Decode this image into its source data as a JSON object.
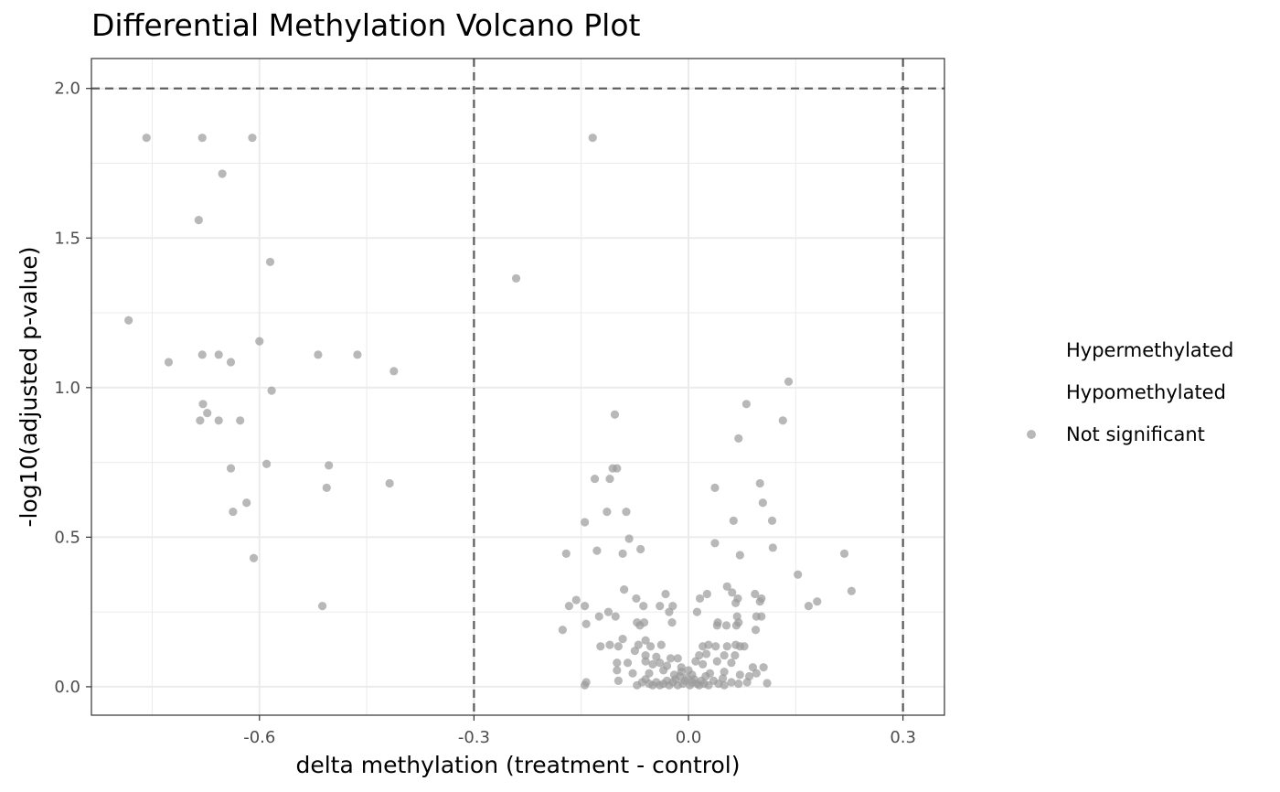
{
  "chart_data": {
    "type": "scatter",
    "title": "Differential Methylation Volcano Plot",
    "xlabel": "delta methylation (treatment - control)",
    "ylabel": "-log10(adjusted p-value)",
    "xlim": [
      -0.835,
      0.358
    ],
    "ylim": [
      -0.095,
      2.1
    ],
    "x_ticks": [
      -0.6,
      -0.3,
      0.0,
      0.3
    ],
    "x_tick_labels": [
      "-0.6",
      "-0.3",
      "0.0",
      "0.3"
    ],
    "y_ticks": [
      0.0,
      0.5,
      1.0,
      1.5,
      2.0
    ],
    "y_tick_labels": [
      "0.0",
      "0.5",
      "1.0",
      "1.5",
      "2.0"
    ],
    "x_minor_ticks": [
      -0.75,
      -0.45,
      -0.15,
      0.15
    ],
    "y_minor_ticks": [
      0.25,
      0.75,
      1.25,
      1.75
    ],
    "threshold_lines": {
      "vertical": [
        -0.3,
        0.3
      ],
      "horizontal": [
        2.0
      ]
    },
    "grid": true,
    "legend_position": "right",
    "legend": [
      {
        "label": "Hypermethylated",
        "shows_marker": false
      },
      {
        "label": "Hypomethylated",
        "shows_marker": false
      },
      {
        "label": "Not significant",
        "shows_marker": true
      }
    ],
    "colors": {
      "not_significant": "#9a9a9a",
      "threshold": "#5a5a5a",
      "grid": "#ebebeb",
      "panel_border": "#333333"
    },
    "series": [
      {
        "name": "Not significant",
        "points": [
          [
            -0.758,
            1.835
          ],
          [
            -0.68,
            1.835
          ],
          [
            -0.61,
            1.835
          ],
          [
            -0.652,
            1.715
          ],
          [
            -0.685,
            1.56
          ],
          [
            -0.585,
            1.42
          ],
          [
            -0.783,
            1.225
          ],
          [
            -0.6,
            1.155
          ],
          [
            -0.518,
            1.11
          ],
          [
            -0.463,
            1.11
          ],
          [
            -0.68,
            1.11
          ],
          [
            -0.657,
            1.11
          ],
          [
            -0.727,
            1.085
          ],
          [
            -0.64,
            1.085
          ],
          [
            -0.412,
            1.055
          ],
          [
            -0.583,
            0.99
          ],
          [
            -0.679,
            0.945
          ],
          [
            -0.673,
            0.915
          ],
          [
            -0.683,
            0.89
          ],
          [
            -0.657,
            0.89
          ],
          [
            -0.627,
            0.89
          ],
          [
            -0.59,
            0.745
          ],
          [
            -0.503,
            0.74
          ],
          [
            -0.64,
            0.73
          ],
          [
            -0.418,
            0.68
          ],
          [
            -0.506,
            0.665
          ],
          [
            -0.618,
            0.615
          ],
          [
            -0.637,
            0.585
          ],
          [
            -0.608,
            0.43
          ],
          [
            -0.512,
            0.27
          ],
          [
            -0.241,
            1.365
          ],
          [
            -0.134,
            1.835
          ],
          [
            0.14,
            1.02
          ],
          [
            0.081,
            0.945
          ],
          [
            -0.103,
            0.91
          ],
          [
            0.132,
            0.89
          ],
          [
            0.07,
            0.83
          ],
          [
            -0.1,
            0.73
          ],
          [
            -0.106,
            0.73
          ],
          [
            -0.131,
            0.695
          ],
          [
            -0.11,
            0.695
          ],
          [
            0.1,
            0.68
          ],
          [
            0.037,
            0.665
          ],
          [
            0.104,
            0.615
          ],
          [
            -0.114,
            0.585
          ],
          [
            -0.087,
            0.585
          ],
          [
            0.063,
            0.555
          ],
          [
            0.117,
            0.555
          ],
          [
            -0.145,
            0.55
          ],
          [
            -0.083,
            0.495
          ],
          [
            0.037,
            0.48
          ],
          [
            0.118,
            0.465
          ],
          [
            -0.067,
            0.46
          ],
          [
            -0.128,
            0.455
          ],
          [
            -0.171,
            0.445
          ],
          [
            -0.092,
            0.445
          ],
          [
            0.072,
            0.44
          ],
          [
            0.218,
            0.445
          ],
          [
            0.153,
            0.375
          ],
          [
            0.054,
            0.335
          ],
          [
            -0.09,
            0.325
          ],
          [
            0.061,
            0.315
          ],
          [
            0.228,
            0.32
          ],
          [
            -0.032,
            0.31
          ],
          [
            0.026,
            0.31
          ],
          [
            0.093,
            0.31
          ],
          [
            -0.157,
            0.29
          ],
          [
            -0.073,
            0.295
          ],
          [
            0.016,
            0.295
          ],
          [
            0.069,
            0.295
          ],
          [
            0.102,
            0.295
          ],
          [
            0.18,
            0.285
          ],
          [
            -0.167,
            0.27
          ],
          [
            -0.145,
            0.27
          ],
          [
            -0.063,
            0.27
          ],
          [
            -0.04,
            0.27
          ],
          [
            -0.022,
            0.27
          ],
          [
            0.1,
            0.285
          ],
          [
            0.168,
            0.27
          ],
          [
            0.066,
            0.28
          ],
          [
            -0.112,
            0.25
          ],
          [
            0.012,
            0.25
          ],
          [
            -0.027,
            0.25
          ],
          [
            -0.102,
            0.235
          ],
          [
            -0.125,
            0.235
          ],
          [
            0.068,
            0.235
          ],
          [
            0.095,
            0.235
          ],
          [
            0.102,
            0.235
          ],
          [
            -0.176,
            0.19
          ],
          [
            -0.143,
            0.21
          ],
          [
            -0.072,
            0.215
          ],
          [
            -0.068,
            0.205
          ],
          [
            -0.023,
            0.215
          ],
          [
            0.041,
            0.215
          ],
          [
            0.04,
            0.205
          ],
          [
            0.053,
            0.205
          ],
          [
            0.07,
            0.215
          ],
          [
            0.067,
            0.205
          ],
          [
            0.094,
            0.19
          ],
          [
            -0.062,
            0.215
          ],
          [
            -0.092,
            0.16
          ],
          [
            -0.123,
            0.135
          ],
          [
            -0.11,
            0.14
          ],
          [
            -0.098,
            0.135
          ],
          [
            -0.07,
            0.14
          ],
          [
            -0.06,
            0.155
          ],
          [
            -0.053,
            0.135
          ],
          [
            -0.038,
            0.14
          ],
          [
            0.02,
            0.135
          ],
          [
            0.028,
            0.14
          ],
          [
            0.038,
            0.135
          ],
          [
            0.054,
            0.135
          ],
          [
            0.066,
            0.14
          ],
          [
            0.072,
            0.135
          ],
          [
            0.078,
            0.135
          ],
          [
            -0.075,
            0.12
          ],
          [
            -0.06,
            0.105
          ],
          [
            -0.045,
            0.1
          ],
          [
            -0.025,
            0.095
          ],
          [
            -0.015,
            0.095
          ],
          [
            0.015,
            0.105
          ],
          [
            0.025,
            0.11
          ],
          [
            0.05,
            0.105
          ],
          [
            0.065,
            0.105
          ],
          [
            -0.1,
            0.08
          ],
          [
            -0.085,
            0.08
          ],
          [
            -0.06,
            0.085
          ],
          [
            -0.05,
            0.075
          ],
          [
            -0.04,
            0.08
          ],
          [
            -0.03,
            0.07
          ],
          [
            0.01,
            0.085
          ],
          [
            0.02,
            0.075
          ],
          [
            0.04,
            0.085
          ],
          [
            0.06,
            0.08
          ],
          [
            0.09,
            0.065
          ],
          [
            0.105,
            0.065
          ],
          [
            -0.1,
            0.055
          ],
          [
            -0.078,
            0.045
          ],
          [
            -0.055,
            0.045
          ],
          [
            -0.035,
            0.055
          ],
          [
            -0.02,
            0.04
          ],
          [
            -0.01,
            0.05
          ],
          [
            0.0,
            0.055
          ],
          [
            0.03,
            0.045
          ],
          [
            0.05,
            0.05
          ],
          [
            0.072,
            0.04
          ],
          [
            0.085,
            0.035
          ],
          [
            0.095,
            0.045
          ],
          [
            -0.145,
            0.005
          ],
          [
            -0.143,
            0.015
          ],
          [
            -0.098,
            0.02
          ],
          [
            -0.06,
            0.025
          ],
          [
            -0.055,
            0.01
          ],
          [
            -0.05,
            0.005
          ],
          [
            -0.045,
            0.015
          ],
          [
            -0.04,
            0.005
          ],
          [
            -0.035,
            0.01
          ],
          [
            -0.03,
            0.02
          ],
          [
            -0.027,
            0.005
          ],
          [
            -0.022,
            0.015
          ],
          [
            -0.018,
            0.025
          ],
          [
            -0.015,
            0.005
          ],
          [
            -0.012,
            0.035
          ],
          [
            -0.008,
            0.01
          ],
          [
            -0.005,
            0.02
          ],
          [
            -0.002,
            0.03
          ],
          [
            0.002,
            0.005
          ],
          [
            0.005,
            0.015
          ],
          [
            0.008,
            0.025
          ],
          [
            0.012,
            0.01
          ],
          [
            0.015,
            0.005
          ],
          [
            0.018,
            0.02
          ],
          [
            0.022,
            0.01
          ],
          [
            0.028,
            0.005
          ],
          [
            0.035,
            0.02
          ],
          [
            0.042,
            0.01
          ],
          [
            0.05,
            0.005
          ],
          [
            0.06,
            0.015
          ],
          [
            0.07,
            0.01
          ],
          [
            0.082,
            0.015
          ],
          [
            0.11,
            0.012
          ],
          [
            -0.072,
            0.005
          ],
          [
            -0.065,
            0.015
          ],
          [
            0.048,
            0.028
          ],
          [
            0.024,
            0.035
          ],
          [
            -0.01,
            0.065
          ],
          [
            0.005,
            0.04
          ]
        ]
      }
    ]
  }
}
